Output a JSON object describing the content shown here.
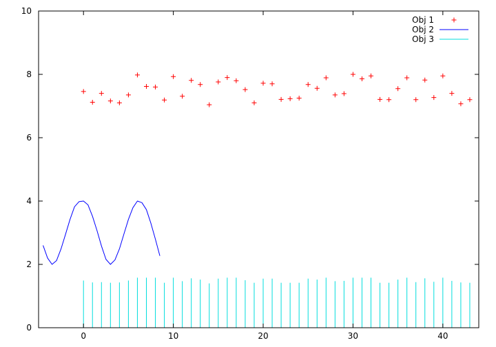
{
  "chart_data": {
    "type": "line",
    "xlim": [
      -5,
      44
    ],
    "ylim": [
      0,
      10
    ],
    "xticks": [
      0,
      10,
      20,
      30,
      40
    ],
    "yticks": [
      0,
      2,
      4,
      6,
      8,
      10
    ],
    "legend": {
      "placement": "top-right"
    },
    "grid": false,
    "series": [
      {
        "name": "Obj 1",
        "style": "points",
        "marker": "plus",
        "color": "#ff0000",
        "x": [
          0,
          1,
          2,
          3,
          4,
          5,
          6,
          7,
          8,
          9,
          10,
          11,
          12,
          13,
          14,
          15,
          16,
          17,
          18,
          19,
          20,
          21,
          22,
          23,
          24,
          25,
          26,
          27,
          28,
          29,
          30,
          31,
          32,
          33,
          34,
          35,
          36,
          37,
          38,
          39,
          40,
          41,
          42,
          43
        ],
        "y": [
          7.46,
          7.12,
          7.4,
          7.16,
          7.1,
          7.35,
          7.98,
          7.62,
          7.6,
          7.19,
          7.93,
          7.31,
          7.81,
          7.68,
          7.04,
          7.76,
          7.9,
          7.8,
          7.52,
          7.1,
          7.72,
          7.7,
          7.21,
          7.23,
          7.25,
          7.68,
          7.56,
          7.89,
          7.35,
          7.39,
          8.0,
          7.86,
          7.95,
          7.21,
          7.2,
          7.55,
          7.89,
          7.2,
          7.82,
          7.27,
          7.95,
          7.4,
          7.07,
          7.2
        ]
      },
      {
        "name": "Obj 2",
        "style": "line",
        "color": "#0000ff",
        "x": [
          -4.5,
          -4.0,
          -3.5,
          -3.0,
          -2.5,
          -2.0,
          -1.5,
          -1.0,
          -0.5,
          0.0,
          0.5,
          1.0,
          1.5,
          2.0,
          2.5,
          3.0,
          3.5,
          4.0,
          4.5,
          5.0,
          5.5,
          6.0,
          6.5,
          7.0,
          7.5,
          8.0,
          8.5
        ],
        "y": [
          2.6,
          2.2,
          2.0,
          2.12,
          2.49,
          2.95,
          3.42,
          3.82,
          3.98,
          4.0,
          3.88,
          3.52,
          3.07,
          2.58,
          2.16,
          2.0,
          2.14,
          2.49,
          2.96,
          3.42,
          3.79,
          4.0,
          3.95,
          3.73,
          3.3,
          2.8,
          2.27
        ]
      },
      {
        "name": "Obj 3",
        "style": "impulses",
        "color": "#00dddd",
        "x": [
          0,
          1,
          2,
          3,
          4,
          5,
          6,
          7,
          8,
          9,
          10,
          11,
          12,
          13,
          14,
          15,
          16,
          17,
          18,
          19,
          20,
          21,
          22,
          23,
          24,
          25,
          26,
          27,
          28,
          29,
          30,
          31,
          32,
          33,
          34,
          35,
          36,
          37,
          38,
          39,
          40,
          41,
          42,
          43
        ],
        "y": [
          1.49,
          1.43,
          1.44,
          1.42,
          1.43,
          1.49,
          1.58,
          1.58,
          1.58,
          1.42,
          1.58,
          1.47,
          1.56,
          1.52,
          1.4,
          1.55,
          1.58,
          1.58,
          1.5,
          1.42,
          1.55,
          1.55,
          1.42,
          1.42,
          1.42,
          1.55,
          1.52,
          1.58,
          1.47,
          1.48,
          1.58,
          1.58,
          1.58,
          1.42,
          1.42,
          1.52,
          1.58,
          1.44,
          1.56,
          1.45,
          1.58,
          1.48,
          1.43,
          1.42
        ]
      }
    ]
  }
}
